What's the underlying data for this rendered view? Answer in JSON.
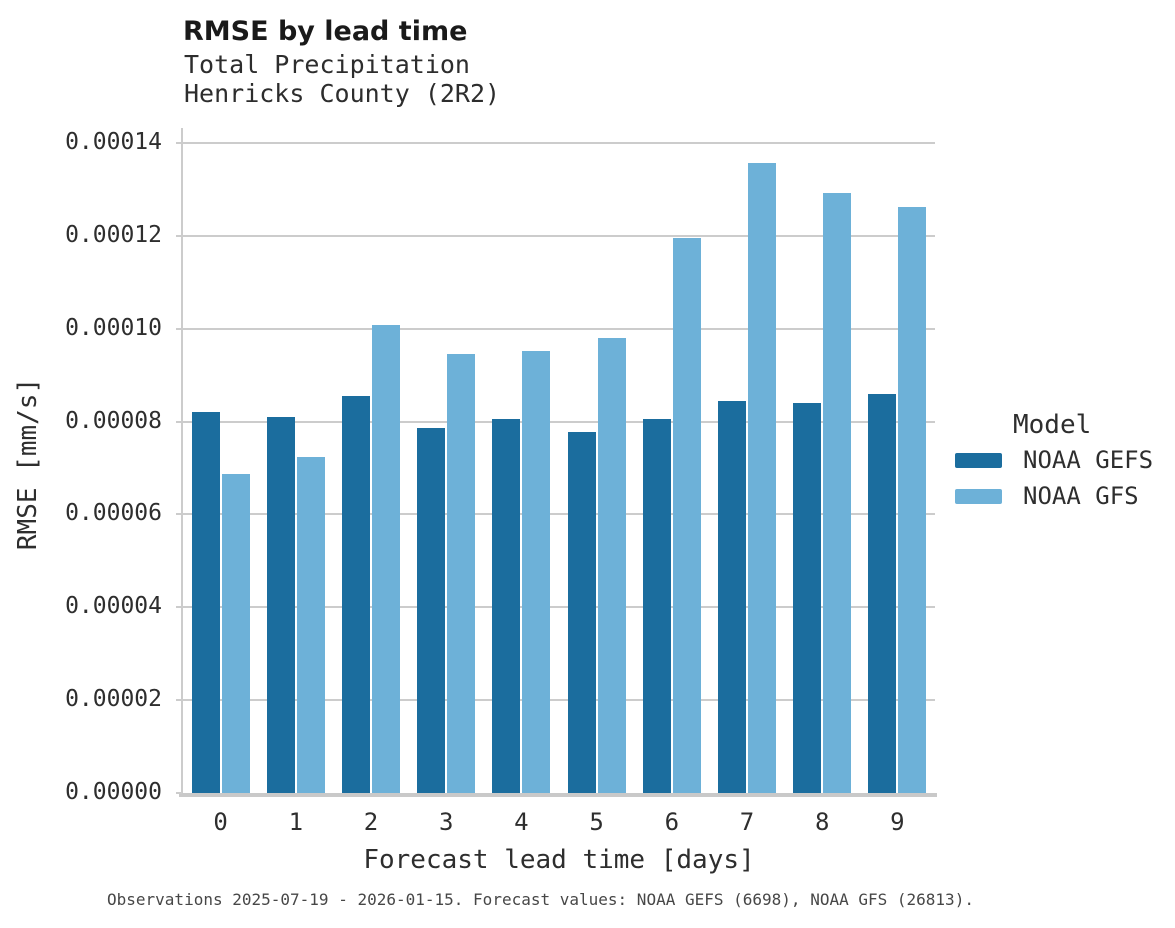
{
  "chart_data": {
    "type": "bar",
    "title": "RMSE by lead time",
    "subtitle_lines": [
      "Total Precipitation",
      "Henricks County (2R2)"
    ],
    "xlabel": "Forecast lead time [days]",
    "ylabel": "RMSE [mm/s]",
    "categories": [
      "0",
      "1",
      "2",
      "3",
      "4",
      "5",
      "6",
      "7",
      "8",
      "9"
    ],
    "series": [
      {
        "name": "NOAA GEFS",
        "color": "#1b6d9e",
        "values": [
          8.21e-05,
          8.1e-05,
          8.56e-05,
          7.87e-05,
          8.06e-05,
          7.78e-05,
          8.06e-05,
          8.45e-05,
          8.41e-05,
          8.6e-05
        ]
      },
      {
        "name": "NOAA GFS",
        "color": "#6db1d8",
        "values": [
          6.88e-05,
          7.24e-05,
          0.0001008,
          9.46e-05,
          9.52e-05,
          9.8e-05,
          0.0001196,
          0.0001358,
          0.0001293,
          0.0001263
        ]
      }
    ],
    "ylim": [
      0,
      0.00014
    ],
    "ytick_labels": [
      "0.00000",
      "0.00002",
      "0.00004",
      "0.00006",
      "0.00008",
      "0.00010",
      "0.00012",
      "0.00014"
    ],
    "grid": "horizontal",
    "legend_title": "Model",
    "legend_position": "right",
    "caption": "Observations 2025-07-19 - 2026-01-15. Forecast values: NOAA GEFS (6698), NOAA GFS (26813)."
  },
  "colors": {
    "grid": "#cccccc",
    "axis_line": "#c9c9c9",
    "axis_text": "#2e2e2e",
    "title_text": "#1a1a1a",
    "caption_text": "#474747",
    "background": "#ffffff"
  }
}
